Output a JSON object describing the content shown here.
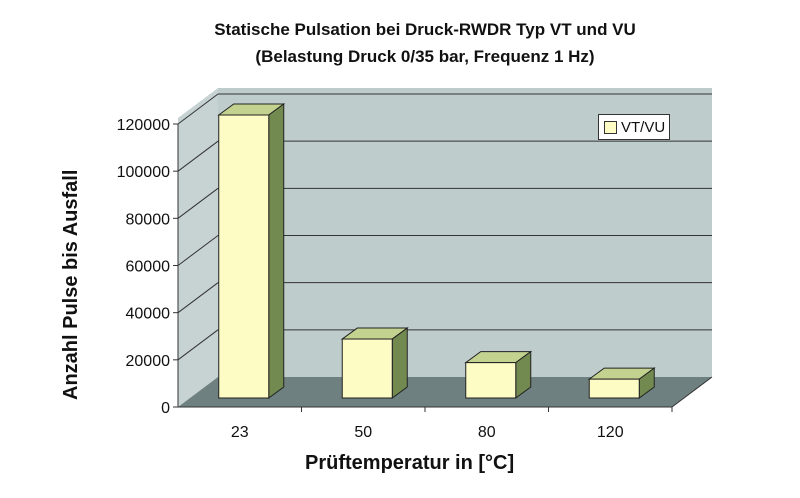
{
  "chart_data": {
    "type": "bar",
    "style": "3d-column",
    "title": "Statische Pulsation bei Druck-RWDR Typ VT und VU",
    "subtitle": "(Belastung Druck 0/35 bar, Frequenz 1 Hz)",
    "xlabel": "Prüftemperatur in [°C]",
    "ylabel": "Anzahl Pulse bis Ausfall",
    "categories": [
      "23",
      "50",
      "80",
      "120"
    ],
    "series": [
      {
        "name": "VT/VU",
        "values": [
          120000,
          25000,
          15000,
          8000
        ],
        "color": "#fdfcc4"
      }
    ],
    "yticks": [
      "0",
      "20000",
      "40000",
      "60000",
      "80000",
      "100000",
      "120000"
    ],
    "ylim": [
      0,
      120000
    ],
    "grid": true,
    "legend_position": "top-right-inside",
    "colors": {
      "wall": "#bfcccc",
      "floor": "#6f8080",
      "bar_front": "#fdfcc4",
      "bar_top": "#c3d38f",
      "bar_side": "#728a50"
    }
  }
}
